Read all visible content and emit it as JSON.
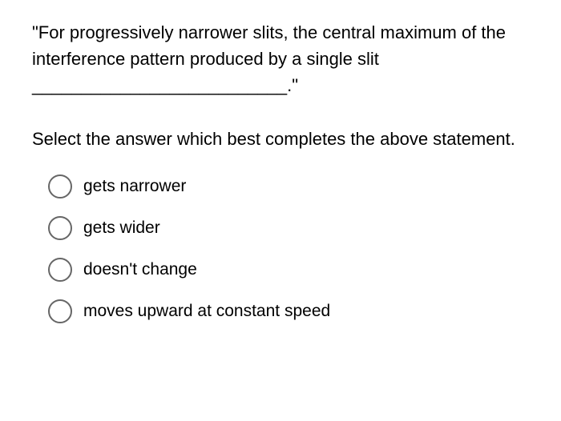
{
  "question": {
    "prompt": "\"For progressively narrower slits, the central maximum of the interference pattern produced by a single slit __________________________.\"",
    "instruction": "Select the answer which best completes the above statement."
  },
  "options": [
    {
      "label": "gets narrower",
      "selected": false
    },
    {
      "label": "gets wider",
      "selected": false
    },
    {
      "label": "doesn't change",
      "selected": false
    },
    {
      "label": "moves upward at constant speed",
      "selected": false
    }
  ],
  "colors": {
    "background": "#ffffff",
    "text": "#000000",
    "radio_border": "#666666"
  },
  "typography": {
    "font_family": "Arial, Helvetica, sans-serif",
    "question_fontsize": 22,
    "option_fontsize": 21
  }
}
